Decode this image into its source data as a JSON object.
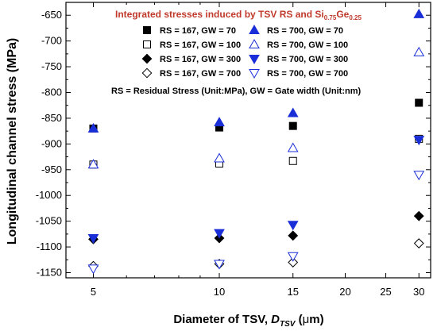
{
  "colors": {
    "title": "#c0392b",
    "black": "#000000",
    "blue": "#1a2ed8",
    "axis": "#000000"
  },
  "chart_data": {
    "type": "scatter",
    "title_parts": {
      "main": "Integrated stresses induced by TSV RS and Si",
      "sub1": "0.75",
      "mid": "Ge",
      "sub2": "0.25"
    },
    "xlabel_parts": {
      "main": "Diameter of TSV, ",
      "var": "D",
      "sub": "TSV",
      "unit_open": " (",
      "mu": "μ",
      "unit_rest": "m)"
    },
    "ylabel": "Longitudinal channel stress (MPa)",
    "x_scale": "log",
    "xlim": [
      4.3,
      32
    ],
    "ylim": [
      -1160,
      -625
    ],
    "xticks": [
      5,
      10,
      15,
      20,
      25,
      30
    ],
    "yticks": [
      -650,
      -700,
      -750,
      -800,
      -850,
      -900,
      -950,
      -1000,
      -1050,
      -1100,
      -1150
    ],
    "grid": false,
    "legend_position": "top",
    "note": "RS = Residual Stress (Unit:MPa), GW = Gate width (Unit:nm)",
    "series": [
      {
        "name": "RS = 167, GW = 70",
        "marker": "square-filled",
        "color": "#000000",
        "x": [
          5,
          10,
          15,
          30
        ],
        "y": [
          -870,
          -868,
          -865,
          -820
        ]
      },
      {
        "name": "RS = 167, GW = 100",
        "marker": "square-open",
        "color": "#000000",
        "x": [
          5,
          10,
          15,
          30
        ],
        "y": [
          -940,
          -938,
          -933,
          -890
        ]
      },
      {
        "name": "RS = 167, GW = 300",
        "marker": "diamond-filled",
        "color": "#000000",
        "x": [
          5,
          10,
          15,
          30
        ],
        "y": [
          -1085,
          -1083,
          -1078,
          -1040
        ]
      },
      {
        "name": "RS = 167, GW = 700",
        "marker": "diamond-open",
        "color": "#000000",
        "x": [
          5,
          10,
          15,
          30
        ],
        "y": [
          -1137,
          -1133,
          -1130,
          -1093
        ]
      },
      {
        "name": "RS = 700, GW = 70",
        "marker": "triangle-up-filled",
        "color": "#1a2ed8",
        "x": [
          5,
          10,
          15,
          30
        ],
        "y": [
          -870,
          -858,
          -840,
          -648
        ]
      },
      {
        "name": "RS = 700, GW = 100",
        "marker": "triangle-up-open",
        "color": "#1a2ed8",
        "x": [
          5,
          10,
          15,
          30
        ],
        "y": [
          -940,
          -928,
          -908,
          -722
        ]
      },
      {
        "name": "RS = 700, GW = 300",
        "marker": "triangle-down-filled",
        "color": "#1a2ed8",
        "x": [
          5,
          10,
          15,
          30
        ],
        "y": [
          -1083,
          -1073,
          -1057,
          -892
        ]
      },
      {
        "name": "RS = 700, GW = 700",
        "marker": "triangle-down-open",
        "color": "#1a2ed8",
        "x": [
          5,
          10,
          15,
          30
        ],
        "y": [
          -1142,
          -1133,
          -1118,
          -960
        ]
      }
    ]
  }
}
